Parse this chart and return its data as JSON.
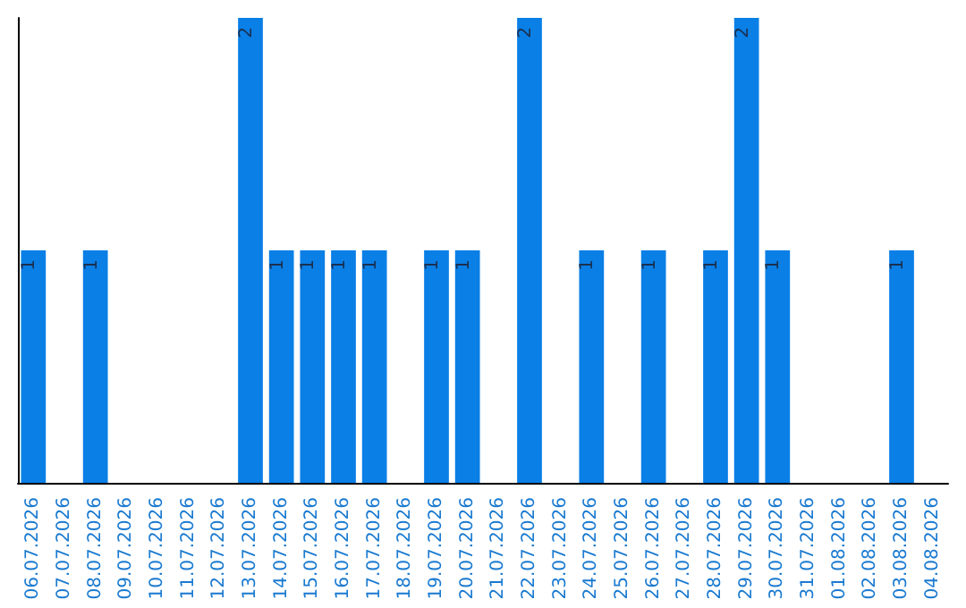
{
  "chart_data": {
    "type": "bar",
    "categories": [
      "06.07.2026",
      "07.07.2026",
      "08.07.2026",
      "09.07.2026",
      "10.07.2026",
      "11.07.2026",
      "12.07.2026",
      "13.07.2026",
      "14.07.2026",
      "15.07.2026",
      "16.07.2026",
      "17.07.2026",
      "18.07.2026",
      "19.07.2026",
      "20.07.2026",
      "21.07.2026",
      "22.07.2026",
      "23.07.2026",
      "24.07.2026",
      "25.07.2026",
      "26.07.2026",
      "27.07.2026",
      "28.07.2026",
      "29.07.2026",
      "30.07.2026",
      "31.07.2026",
      "01.08.2026",
      "02.08.2026",
      "03.08.2026",
      "04.08.2026"
    ],
    "values": [
      1,
      0,
      1,
      0,
      0,
      0,
      0,
      2,
      1,
      1,
      1,
      1,
      0,
      1,
      1,
      0,
      2,
      0,
      1,
      0,
      1,
      0,
      1,
      2,
      1,
      0,
      0,
      0,
      1,
      0
    ],
    "value_labels": [
      "1",
      null,
      "1",
      null,
      null,
      null,
      null,
      "2",
      "1",
      "1",
      "1",
      "1",
      null,
      "1",
      "1",
      null,
      "2",
      null,
      "1",
      null,
      "1",
      null,
      "1",
      "2",
      "1",
      null,
      null,
      null,
      "1",
      null
    ],
    "color": "#0a7fe6"
  }
}
